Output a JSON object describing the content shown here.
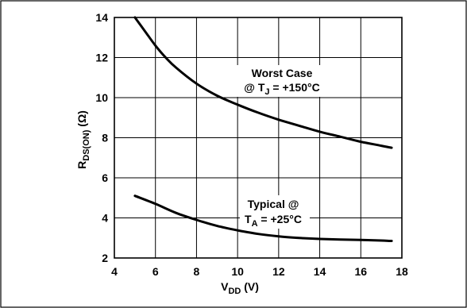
{
  "chart_data": {
    "type": "line",
    "xlabel": {
      "main": "V",
      "sub": "DD",
      "rest": " (V)"
    },
    "ylabel": {
      "main": "R",
      "sub": "DS(ON)",
      "rest": " (Ω)"
    },
    "xlim": [
      4,
      18
    ],
    "ylim": [
      2,
      14
    ],
    "x_ticks": [
      4,
      6,
      8,
      10,
      12,
      14,
      16,
      18
    ],
    "y_ticks": [
      2,
      4,
      6,
      8,
      10,
      12,
      14
    ],
    "grid": true,
    "series": [
      {
        "x": [
          5.0,
          5.5,
          6.0,
          6.5,
          7.0,
          8.0,
          9.0,
          10.0,
          11.0,
          12.0,
          13.0,
          14.0,
          15.0,
          16.0,
          17.0,
          17.5
        ],
        "y": [
          14.0,
          13.3,
          12.6,
          12.0,
          11.5,
          10.7,
          10.1,
          9.65,
          9.25,
          8.9,
          8.6,
          8.3,
          8.05,
          7.8,
          7.6,
          7.5
        ]
      },
      {
        "x": [
          5.0,
          6.0,
          7.0,
          8.0,
          9.0,
          10.0,
          11.0,
          12.0,
          13.0,
          14.0,
          15.0,
          16.0,
          17.0,
          17.5
        ],
        "y": [
          5.1,
          4.7,
          4.25,
          3.9,
          3.6,
          3.38,
          3.2,
          3.08,
          3.0,
          2.95,
          2.92,
          2.9,
          2.87,
          2.85
        ]
      }
    ],
    "annotations": [
      {
        "id": "worst",
        "line1": "Worst Case",
        "line2_prefix": "@ T",
        "line2_sub": "J",
        "line2_rest": " = +150°C"
      },
      {
        "id": "typical",
        "line1": "Typical @",
        "line2_prefix": "T",
        "line2_sub": "A",
        "line2_rest": " = +25°C"
      }
    ]
  }
}
